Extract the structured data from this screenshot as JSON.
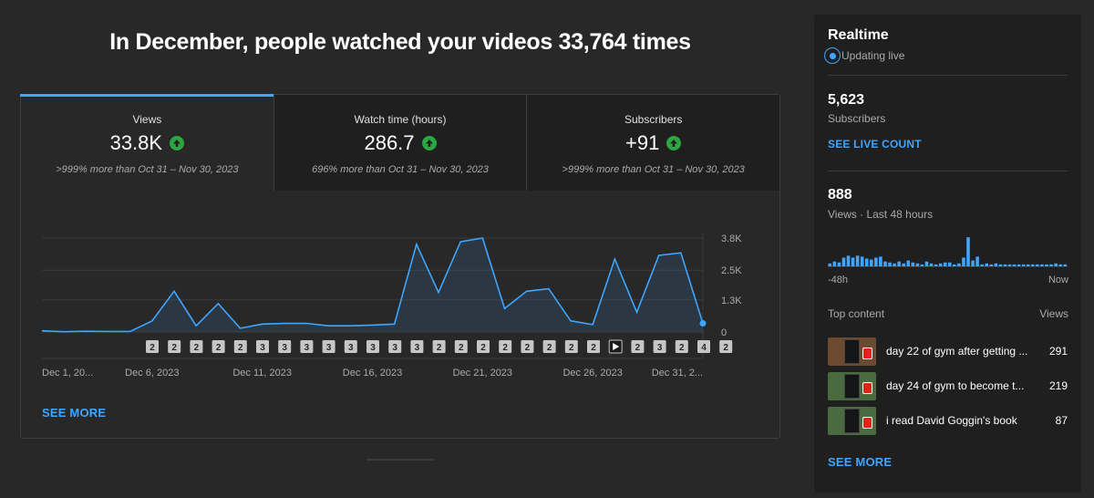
{
  "headline": "In December, people watched your videos 33,764 times",
  "tabs": [
    {
      "label": "Views",
      "value": "33.8K",
      "compare": ">999% more than Oct 31 – Nov 30, 2023",
      "trend": "up"
    },
    {
      "label": "Watch time (hours)",
      "value": "286.7",
      "compare": "696% more than Oct 31 – Nov 30, 2023",
      "trend": "up"
    },
    {
      "label": "Subscribers",
      "value": "+91",
      "compare": ">999% more than Oct 31 – Nov 30, 2023",
      "trend": "up"
    }
  ],
  "chart_data": {
    "type": "area",
    "x": [
      "Dec 1",
      "Dec 2",
      "Dec 3",
      "Dec 4",
      "Dec 5",
      "Dec 6",
      "Dec 7",
      "Dec 8",
      "Dec 9",
      "Dec 10",
      "Dec 11",
      "Dec 12",
      "Dec 13",
      "Dec 14",
      "Dec 15",
      "Dec 16",
      "Dec 17",
      "Dec 18",
      "Dec 19",
      "Dec 20",
      "Dec 21",
      "Dec 22",
      "Dec 23",
      "Dec 24",
      "Dec 25",
      "Dec 26",
      "Dec 27",
      "Dec 28",
      "Dec 29",
      "Dec 30",
      "Dec 31"
    ],
    "values": [
      50,
      10,
      30,
      20,
      20,
      450,
      1650,
      250,
      1150,
      150,
      320,
      350,
      350,
      250,
      250,
      280,
      320,
      3550,
      1600,
      3650,
      3800,
      950,
      1650,
      1750,
      450,
      300,
      2950,
      800,
      3100,
      3200,
      350
    ],
    "tick_labels": [
      "Dec 1, 20...",
      "Dec 6, 2023",
      "Dec 11, 2023",
      "Dec 16, 2023",
      "Dec 21, 2023",
      "Dec 26, 2023",
      "Dec 31, 2..."
    ],
    "tick_indices": [
      0,
      5,
      10,
      15,
      20,
      25,
      30
    ],
    "y_ticks": [
      0,
      1300,
      2500,
      3800
    ],
    "y_tick_labels": [
      "0",
      "1.3K",
      "2.5K",
      "3.8K"
    ],
    "ylim": [
      0,
      3800
    ],
    "grid": true,
    "color": "#3ea6ff",
    "markers": [
      "2",
      "2",
      "2",
      "2",
      "2",
      "3",
      "3",
      "3",
      "3",
      "3",
      "3",
      "3",
      "3",
      "2",
      "2",
      "2",
      "2",
      "2",
      "2",
      "2",
      "2",
      "play",
      "2",
      "3",
      "2",
      "4",
      "2"
    ]
  },
  "see_more_main": "SEE MORE",
  "realtime": {
    "title": "Realtime",
    "status": "Updating live",
    "subscribers_value": "5,623",
    "subscribers_label": "Subscribers",
    "live_count_link": "SEE LIVE COUNT",
    "views_value": "888",
    "views_label": "Views · Last 48 hours",
    "axis_start": "-48h",
    "axis_end": "Now",
    "bars": [
      3,
      5,
      4,
      9,
      11,
      9,
      11,
      10,
      8,
      7,
      9,
      10,
      5,
      4,
      3,
      5,
      3,
      6,
      4,
      3,
      2,
      5,
      3,
      2,
      3,
      4,
      4,
      2,
      3,
      9,
      30,
      6,
      10,
      2,
      3,
      2,
      3,
      2,
      2,
      2,
      2,
      2,
      2,
      2,
      2,
      2,
      2,
      2,
      2,
      3,
      2,
      2
    ],
    "top_content_label": "Top content",
    "views_col_label": "Views",
    "top_content": [
      {
        "title": "day 22 of gym after getting ...",
        "views": "291"
      },
      {
        "title": "day 24 of gym to become t...",
        "views": "219"
      },
      {
        "title": "i read David Goggin's book",
        "views": "87"
      }
    ],
    "see_more": "SEE MORE"
  }
}
